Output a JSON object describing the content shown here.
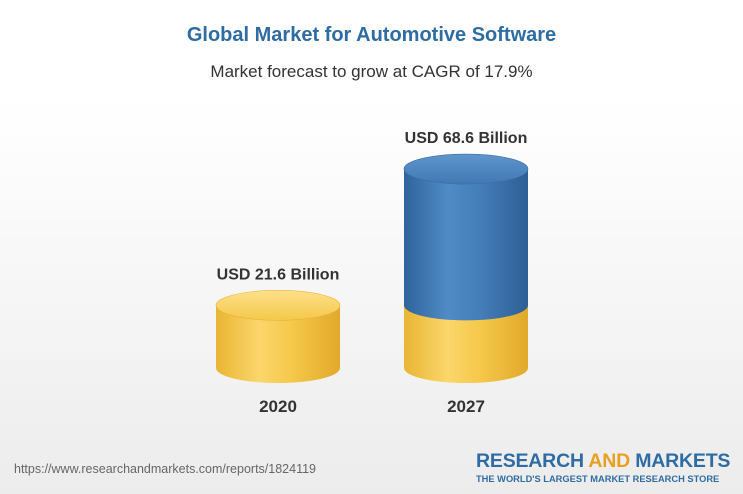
{
  "header": {
    "title": "Global Market for Automotive Software",
    "subtitle": "Market forecast to grow at CAGR of 17.9%"
  },
  "chart_data": {
    "type": "bar",
    "style": "3d-cylinder",
    "categories": [
      "2020",
      "2027"
    ],
    "values": [
      21.6,
      68.6
    ],
    "value_labels": [
      "USD 21.6 Billion",
      "USD 68.6 Billion"
    ],
    "unit": "USD Billion",
    "title": "Global Market for Automotive Software",
    "subtitle": "Market forecast to grow at CAGR of 17.9%",
    "colors": {
      "base": "#f3c445",
      "growth": "#3f78b4"
    },
    "grid": false,
    "legend": "none"
  },
  "footer": {
    "url": "https://www.researchandmarkets.com/reports/1824119",
    "brand_part1": "RESEARCH ",
    "brand_part2": "AND",
    "brand_part3": " MARKETS",
    "tagline": "THE WORLD'S LARGEST MARKET RESEARCH STORE"
  }
}
